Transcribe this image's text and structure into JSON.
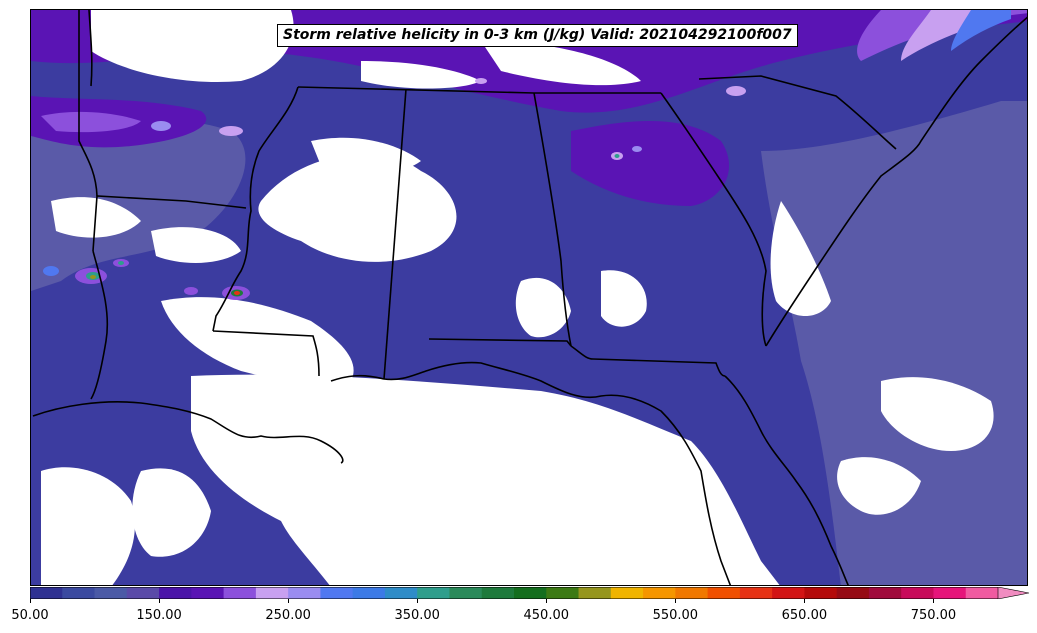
{
  "map": {
    "title": "Storm relative helicity in 0-3 km (J/kg) Valid: 202104292100f007",
    "colors": {
      "background_fill": "#3c3ca0",
      "mid_fill": "#5a5aa8",
      "purple_fill": "#5a14b4",
      "violet_fill": "#8c50dc",
      "lavender_fill": "#c8a0f0",
      "blue_fill": "#5078f0",
      "no_data": "#ffffff",
      "borders": "#000000"
    }
  },
  "colorbar": {
    "tick_labels": [
      "50.00",
      "150.00",
      "250.00",
      "350.00",
      "450.00",
      "550.00",
      "650.00",
      "750.00"
    ],
    "min": 50,
    "max": 825,
    "step": 25,
    "extend": "max",
    "colors": [
      "#2f3192",
      "#3b4aa0",
      "#4b5aa6",
      "#5a4aa8",
      "#4b14a8",
      "#5a14b4",
      "#8c50dc",
      "#c8a0f0",
      "#9a8cf0",
      "#5078f0",
      "#3c7ae6",
      "#2e8cc8",
      "#2e9e8c",
      "#2a8a5a",
      "#1e7a3c",
      "#146e1e",
      "#3c7a14",
      "#96961e",
      "#f0b400",
      "#f59600",
      "#f07800",
      "#f05000",
      "#e63214",
      "#d21414",
      "#b40a0a",
      "#960a14",
      "#a00a3c",
      "#c80a5a",
      "#e6147a",
      "#f05aa0",
      "#f08cc0"
    ]
  }
}
